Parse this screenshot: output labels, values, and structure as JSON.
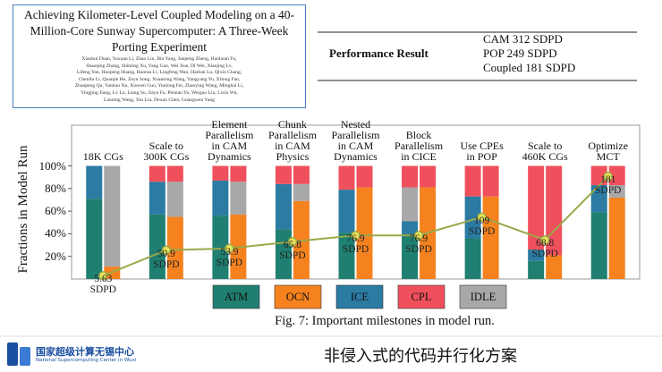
{
  "paper": {
    "title": "Achieving Kilometer-Level Coupled Modeling on a 40-Million-Core Sunway Supercomputer: A Three-Week Porting Experiment",
    "authors": [
      "Xiaohui Duan, Yuxuan Li, Zhao Liu, Bin Yang, Juepeng Zheng, Haohuan Fu,",
      "Shaoqing Zhang, Shiming Xu, Yang Gao, Wei Xue, Di Wei, Xiaojing Lv,",
      "Lifeng Yan, Haopeng Huang, Haoran Li, Lingfeng Wan, Haitian Lu, Qixin Chang,",
      "Chenlin Li, Quanjie He, Zeyu Song, Xuantong Wang, Yangyang Yu, Xilong Fan,",
      "Zhaopeng Qu, Yankun Xu, Xiuwen Guo, Yunlong Fei, Zhaoying Wang, Mingkui Li,",
      "Yingjing Jiang, Lv Lu, Liang Su, Jiayu Fu, Pennan Yu, Weiguo Liu, Lixin Wu,",
      "Lanning Wang, Xin Liu, Dexun Chen, Guangwen Yang"
    ]
  },
  "table": {
    "header": "Performance Result",
    "rows": [
      "CAM 312 SDPD",
      "POP 249 SDPD",
      "Coupled 181 SDPD"
    ]
  },
  "chart_data": {
    "type": "bar",
    "y_label": "Fractions in Model Run",
    "categories": [
      "18K CGs",
      "Scale to\n300K CGs",
      "Element\nParallelism\nin CAM\nDynamics",
      "Chunk\nParallelism\nin CAM\nPhysics",
      "Nested\nParallelism\nin CAM\nDynamics",
      "Block\nParallelism\nin CICE",
      "Use CPEs\nin POP",
      "Scale to\n460K CGs",
      "Optimize\nMCT"
    ],
    "ylim": [
      0,
      136
    ],
    "yticks": [
      {
        "value": 20,
        "label": "20%"
      },
      {
        "value": 40,
        "label": "40%"
      },
      {
        "value": 60,
        "label": "60%"
      },
      {
        "value": 80,
        "label": "80%"
      },
      {
        "value": 100,
        "label": "100%"
      }
    ],
    "series": [
      {
        "name": "ATM",
        "color": "#1f7f70",
        "values": [
          [
            71,
            null
          ],
          [
            57,
            null
          ],
          [
            56,
            null
          ],
          [
            44,
            null
          ],
          [
            41,
            null
          ],
          [
            40,
            null
          ],
          [
            36,
            null
          ],
          [
            16,
            null
          ],
          [
            59,
            null
          ]
        ]
      },
      {
        "name": "OCN",
        "color": "#f5821f",
        "values": [
          [
            null,
            11
          ],
          [
            null,
            55
          ],
          [
            null,
            57
          ],
          [
            null,
            69
          ],
          [
            null,
            81
          ],
          [
            null,
            81
          ],
          [
            null,
            73
          ],
          [
            null,
            21
          ],
          [
            null,
            72
          ]
        ]
      },
      {
        "name": "ICE",
        "color": "#2b7ba3",
        "values": [
          [
            29,
            null
          ],
          [
            29,
            null
          ],
          [
            31,
            null
          ],
          [
            40,
            null
          ],
          [
            38,
            null
          ],
          [
            11,
            null
          ],
          [
            37,
            null
          ],
          [
            10,
            null
          ],
          [
            24,
            null
          ]
        ]
      },
      {
        "name": "CPL",
        "color": "#f0505c",
        "values": [
          [
            null,
            null
          ],
          [
            14,
            14
          ],
          [
            13,
            14
          ],
          [
            16,
            16
          ],
          [
            21,
            19
          ],
          [
            19,
            19
          ],
          [
            27,
            27
          ],
          [
            74,
            79
          ],
          [
            17,
            17
          ]
        ]
      },
      {
        "name": "IDLE",
        "color": "#a8a8a8",
        "values": [
          [
            null,
            89
          ],
          [
            null,
            31
          ],
          [
            null,
            29
          ],
          [
            null,
            15
          ],
          [
            null,
            null
          ],
          [
            30,
            null
          ],
          [
            null,
            null
          ],
          [
            null,
            null
          ],
          [
            null,
            11
          ]
        ]
      }
    ],
    "y2lim": [
      0,
      271
    ],
    "line": {
      "axis": "y2",
      "color": "#9aa84a",
      "values": [
        5.63,
        50.9,
        53.9,
        65.8,
        76.9,
        76.9,
        109,
        68.8,
        181
      ],
      "value_labels": [
        "5.63\nSDPD",
        "50.9\nSDPD",
        "53.9\nSDPD",
        "65.8\nSDPD",
        "76.9\nSDPD",
        "76.9\nSDPD",
        "109\nSDPD",
        "68.8\nSDPD",
        "181\nSDPD"
      ]
    }
  },
  "caption": "Fig. 7: Important milestones in model run.",
  "footer": {
    "logo_cn": "国家超级计算无锡中心",
    "logo_en": "National Supercomputing Center in Wuxi",
    "subtitle": "非侵入式的代码并行化方案"
  }
}
